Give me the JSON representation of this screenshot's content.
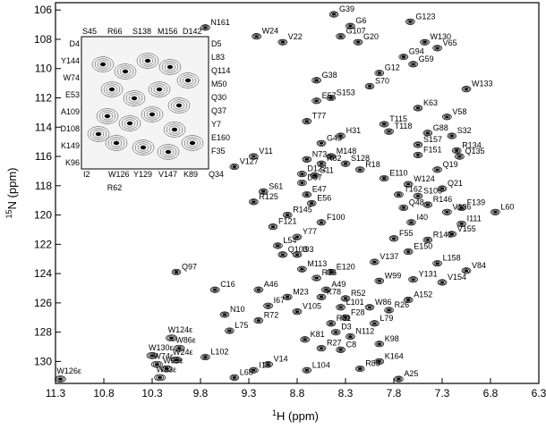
{
  "chart_data": {
    "type": "scatter",
    "title": "",
    "xlabel_main": "1H (ppm)",
    "xlabel_sup": "1",
    "xlabel_rest": "H (ppm)",
    "ylabel_sup": "15",
    "ylabel_rest": "N (ppm)",
    "xlim": [
      11.3,
      6.3
    ],
    "ylim": [
      131.5,
      105.5
    ],
    "x_ticks": [
      "11.3",
      "10.8",
      "10.3",
      "9.8",
      "9.3",
      "8.8",
      "8.3",
      "7.8",
      "7.3",
      "6.8",
      "6.3"
    ],
    "x_tick_values": [
      11.3,
      10.8,
      10.3,
      9.8,
      9.3,
      8.8,
      8.3,
      7.8,
      7.3,
      6.8,
      6.3
    ],
    "y_ticks": [
      "106",
      "108",
      "110",
      "112",
      "114",
      "116",
      "118",
      "120",
      "122",
      "124",
      "126",
      "128",
      "130"
    ],
    "y_tick_values": [
      106,
      108,
      110,
      112,
      114,
      116,
      118,
      120,
      122,
      124,
      126,
      128,
      130
    ],
    "grid": false,
    "peaks": [
      {
        "label": "G39",
        "x": 8.42,
        "y": 106.3
      },
      {
        "label": "G6",
        "x": 8.25,
        "y": 107.1
      },
      {
        "label": "G123",
        "x": 7.63,
        "y": 106.8
      },
      {
        "label": "G107",
        "x": 8.35,
        "y": 107.8
      },
      {
        "label": "G20",
        "x": 8.17,
        "y": 108.2
      },
      {
        "label": "W24",
        "x": 9.22,
        "y": 107.8
      },
      {
        "label": "N161",
        "x": 9.75,
        "y": 107.2
      },
      {
        "label": "V22",
        "x": 8.95,
        "y": 108.2
      },
      {
        "label": "W130",
        "x": 7.48,
        "y": 108.2
      },
      {
        "label": "V65",
        "x": 7.35,
        "y": 108.6
      },
      {
        "label": "G94",
        "x": 7.7,
        "y": 109.2
      },
      {
        "label": "G59",
        "x": 7.6,
        "y": 109.7
      },
      {
        "label": "G12",
        "x": 7.95,
        "y": 110.3
      },
      {
        "label": "G38",
        "x": 8.6,
        "y": 110.8
      },
      {
        "label": "S70",
        "x": 8.05,
        "y": 111.2
      },
      {
        "label": "W133",
        "x": 7.05,
        "y": 111.4
      },
      {
        "label": "E57",
        "x": 8.6,
        "y": 112.2
      },
      {
        "label": "S153",
        "x": 8.45,
        "y": 112.0
      },
      {
        "label": "K63",
        "x": 7.55,
        "y": 112.7
      },
      {
        "label": "V58",
        "x": 7.25,
        "y": 113.3
      },
      {
        "label": "T77",
        "x": 8.7,
        "y": 113.6
      },
      {
        "label": "T115",
        "x": 7.9,
        "y": 113.8
      },
      {
        "label": "T118",
        "x": 7.85,
        "y": 114.3
      },
      {
        "label": "G88",
        "x": 7.45,
        "y": 114.4
      },
      {
        "label": "S32",
        "x": 7.2,
        "y": 114.6
      },
      {
        "label": "G43",
        "x": 8.55,
        "y": 115.1
      },
      {
        "label": "H31",
        "x": 8.35,
        "y": 114.6
      },
      {
        "label": "S157",
        "x": 7.55,
        "y": 115.2
      },
      {
        "label": "R134",
        "x": 7.15,
        "y": 115.6
      },
      {
        "label": "V11",
        "x": 9.25,
        "y": 116.0
      },
      {
        "label": "N73",
        "x": 8.7,
        "y": 116.2
      },
      {
        "label": "M148",
        "x": 8.45,
        "y": 116.0
      },
      {
        "label": "F151",
        "x": 7.55,
        "y": 115.9
      },
      {
        "label": "Q135",
        "x": 7.12,
        "y": 116.0
      },
      {
        "label": "V127",
        "x": 9.45,
        "y": 116.7
      },
      {
        "label": "R82",
        "x": 8.55,
        "y": 116.5
      },
      {
        "label": "S128",
        "x": 8.3,
        "y": 116.5
      },
      {
        "label": "R18",
        "x": 8.15,
        "y": 116.9
      },
      {
        "label": "Q19",
        "x": 7.35,
        "y": 116.9
      },
      {
        "label": "D122",
        "x": 8.75,
        "y": 117.2
      },
      {
        "label": "S11",
        "x": 8.62,
        "y": 117.3
      },
      {
        "label": "D87",
        "x": 8.75,
        "y": 117.8
      },
      {
        "label": "E110",
        "x": 7.9,
        "y": 117.5
      },
      {
        "label": "W124",
        "x": 7.65,
        "y": 117.9
      },
      {
        "label": "Q21",
        "x": 7.3,
        "y": 118.2
      },
      {
        "label": "E47",
        "x": 8.7,
        "y": 118.6
      },
      {
        "label": "T162",
        "x": 7.75,
        "y": 118.6
      },
      {
        "label": "S106",
        "x": 7.55,
        "y": 118.7
      },
      {
        "label": "S61",
        "x": 9.15,
        "y": 118.4
      },
      {
        "label": "R125",
        "x": 9.25,
        "y": 119.1
      },
      {
        "label": "E56",
        "x": 8.65,
        "y": 119.2
      },
      {
        "label": "R146",
        "x": 7.45,
        "y": 119.3
      },
      {
        "label": "F139",
        "x": 7.1,
        "y": 119.5
      },
      {
        "label": "Q48",
        "x": 7.7,
        "y": 119.5
      },
      {
        "label": "V136",
        "x": 7.25,
        "y": 119.8
      },
      {
        "label": "L60",
        "x": 6.75,
        "y": 119.8
      },
      {
        "label": "R145",
        "x": 8.9,
        "y": 120.0
      },
      {
        "label": "F100",
        "x": 8.55,
        "y": 120.5
      },
      {
        "label": "I40",
        "x": 7.62,
        "y": 120.5
      },
      {
        "label": "I111",
        "x": 7.1,
        "y": 120.6
      },
      {
        "label": "F121",
        "x": 9.05,
        "y": 120.8
      },
      {
        "label": "V155",
        "x": 7.2,
        "y": 121.3
      },
      {
        "label": "R141",
        "x": 7.45,
        "y": 121.7
      },
      {
        "label": "Y77",
        "x": 8.8,
        "y": 121.5
      },
      {
        "label": "F55",
        "x": 7.8,
        "y": 121.6
      },
      {
        "label": "L54",
        "x": 9.0,
        "y": 122.1
      },
      {
        "label": "Q103",
        "x": 8.95,
        "y": 122.7
      },
      {
        "label": "I93",
        "x": 8.8,
        "y": 122.7
      },
      {
        "label": "E150",
        "x": 7.65,
        "y": 122.5
      },
      {
        "label": "V137",
        "x": 8.0,
        "y": 123.2
      },
      {
        "label": "L158",
        "x": 7.35,
        "y": 123.3
      },
      {
        "label": "Q97",
        "x": 10.05,
        "y": 123.9
      },
      {
        "label": "M113",
        "x": 8.75,
        "y": 123.7
      },
      {
        "label": "E120",
        "x": 8.45,
        "y": 123.9
      },
      {
        "label": "V84",
        "x": 7.05,
        "y": 123.8
      },
      {
        "label": "R76",
        "x": 8.6,
        "y": 124.3
      },
      {
        "label": "W99",
        "x": 7.95,
        "y": 124.5
      },
      {
        "label": "Y131",
        "x": 7.6,
        "y": 124.4
      },
      {
        "label": "V154",
        "x": 7.3,
        "y": 124.6
      },
      {
        "label": "C16",
        "x": 9.65,
        "y": 125.1
      },
      {
        "label": "A46",
        "x": 9.2,
        "y": 125.1
      },
      {
        "label": "A49",
        "x": 8.5,
        "y": 125.1
      },
      {
        "label": "M23",
        "x": 8.9,
        "y": 125.6
      },
      {
        "label": "K78",
        "x": 8.55,
        "y": 125.6
      },
      {
        "label": "R52",
        "x": 8.3,
        "y": 125.7
      },
      {
        "label": "A152",
        "x": 7.65,
        "y": 125.8
      },
      {
        "label": "I67",
        "x": 9.1,
        "y": 126.2
      },
      {
        "label": "L101",
        "x": 8.35,
        "y": 126.3
      },
      {
        "label": "W86",
        "x": 8.05,
        "y": 126.3
      },
      {
        "label": "R26",
        "x": 7.85,
        "y": 126.5
      },
      {
        "label": "V105",
        "x": 8.8,
        "y": 126.6
      },
      {
        "label": "N10",
        "x": 9.55,
        "y": 126.8
      },
      {
        "label": "R72",
        "x": 9.2,
        "y": 127.2
      },
      {
        "label": "F28",
        "x": 8.3,
        "y": 127.0
      },
      {
        "label": "R81",
        "x": 8.45,
        "y": 127.4
      },
      {
        "label": "L79",
        "x": 8.0,
        "y": 127.4
      },
      {
        "label": "L75",
        "x": 9.5,
        "y": 127.9
      },
      {
        "label": "D3",
        "x": 8.4,
        "y": 128.0
      },
      {
        "label": "K81",
        "x": 8.72,
        "y": 128.5
      },
      {
        "label": "N112",
        "x": 8.25,
        "y": 128.3
      },
      {
        "label": "K98",
        "x": 7.95,
        "y": 128.8
      },
      {
        "label": "R27",
        "x": 8.55,
        "y": 129.1
      },
      {
        "label": "C8",
        "x": 8.35,
        "y": 129.2
      },
      {
        "label": "L102",
        "x": 9.75,
        "y": 129.7
      },
      {
        "label": "V14",
        "x": 9.1,
        "y": 130.2
      },
      {
        "label": "K164",
        "x": 7.95,
        "y": 130.0
      },
      {
        "label": "R85",
        "x": 8.15,
        "y": 130.5
      },
      {
        "label": "I15",
        "x": 9.25,
        "y": 130.6
      },
      {
        "label": "L104",
        "x": 8.7,
        "y": 130.6
      },
      {
        "label": "L68",
        "x": 9.45,
        "y": 131.1
      },
      {
        "label": "N41",
        "x": 9.35,
        "y": 131.5
      },
      {
        "label": "A25",
        "x": 7.75,
        "y": 131.2
      }
    ],
    "inset": {
      "labels_top": [
        "S45",
        "R66",
        "S138",
        "M156",
        "D142"
      ],
      "labels_left": [
        "D4",
        "Y144",
        "W74",
        "E53",
        "A109",
        "D108",
        "K149",
        "K96"
      ],
      "labels_right": [
        "D5",
        "L83",
        "Q114",
        "M50",
        "Q30",
        "Q37",
        "Y7",
        "E160",
        "F35"
      ],
      "labels_bottom": [
        "I2",
        "W126",
        "Y129",
        "V147",
        "K89",
        "Q34"
      ],
      "label_below": "R62"
    },
    "sidechain_peaks": [
      {
        "label": "W126ε",
        "x": 11.25,
        "y": 131.2
      },
      {
        "label": "W130ε",
        "x": 10.3,
        "y": 129.6
      },
      {
        "label": "W124ε",
        "x": 10.1,
        "y": 128.4
      },
      {
        "label": "W86ε",
        "x": 10.02,
        "y": 129.1
      },
      {
        "label": "W74ε",
        "x": 10.25,
        "y": 130.2
      },
      {
        "label": "W24ε",
        "x": 10.05,
        "y": 129.9
      },
      {
        "label": "W99ε",
        "x": 10.15,
        "y": 130.5
      },
      {
        "label": "W33ε",
        "x": 10.22,
        "y": 131.1
      }
    ]
  }
}
